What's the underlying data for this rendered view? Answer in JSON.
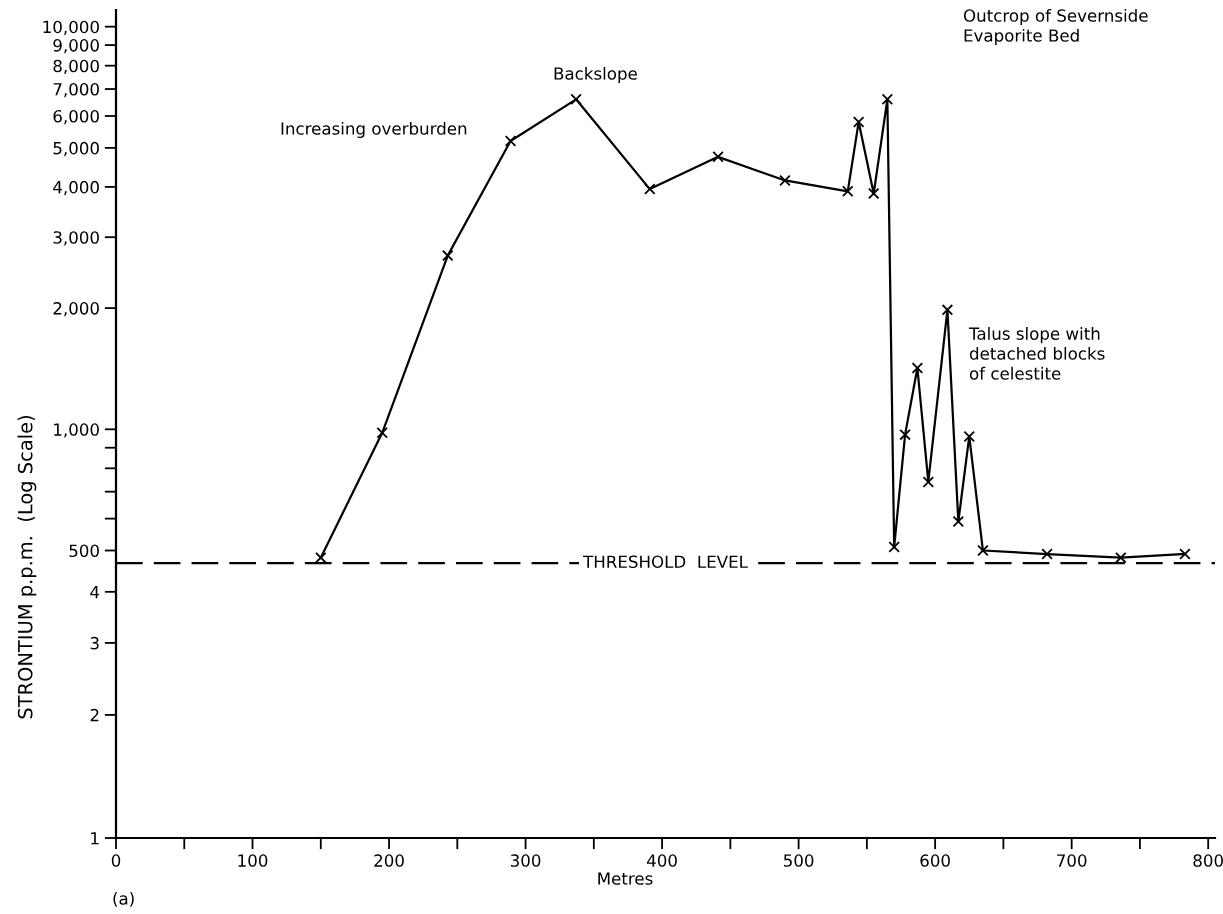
{
  "chart_data": [
    {
      "type": "line",
      "ylabel": "STRONTIUM p.p.m.  (Log Scale)",
      "log": true,
      "marker": "cross",
      "line_style": "solid",
      "grid": false,
      "legend": false,
      "tick_labels": "y",
      "xlim": [
        0,
        805
      ],
      "ylim": [
        455,
        11000
      ],
      "yticks": [
        {
          "value": 500,
          "label": "500"
        },
        {
          "value": 600,
          "label": null
        },
        {
          "value": 700,
          "label": null
        },
        {
          "value": 800,
          "label": null
        },
        {
          "value": 900,
          "label": null
        },
        {
          "value": 1000,
          "label": "1,000"
        },
        {
          "value": 2000,
          "label": "2,000"
        },
        {
          "value": 3000,
          "label": "3,000"
        },
        {
          "value": 4000,
          "label": "4,000"
        },
        {
          "value": 5000,
          "label": "5,000"
        },
        {
          "value": 6000,
          "label": "6,000"
        },
        {
          "value": 7000,
          "label": "7,000"
        },
        {
          "value": 8000,
          "label": "8,000"
        },
        {
          "value": 9000,
          "label": "9,000"
        },
        {
          "value": 10000,
          "label": "10,000"
        }
      ],
      "x": [
        150,
        195,
        243,
        289,
        337,
        391,
        441,
        490,
        536,
        544,
        555,
        565,
        570,
        578,
        587,
        595,
        609,
        617,
        625,
        635,
        682,
        736,
        783
      ],
      "series": [
        {
          "color": "#000000",
          "values": [
            480,
            980,
            2700,
            5200,
            6600,
            3950,
            4750,
            4150,
            3900,
            5800,
            3850,
            6600,
            510,
            970,
            1420,
            740,
            1980,
            590,
            960,
            500,
            490,
            480,
            490
          ]
        }
      ],
      "ref_lines": [
        {
          "axis": "y",
          "value": 465,
          "label": "THRESHOLD  LEVEL",
          "line_style": "dashed",
          "color": "#000000"
        }
      ],
      "annotations": [
        "Increasing overburden",
        "Backslope",
        "Outcrop of Severnside\nEvaporite Bed",
        "Talus slope with\ndetached blocks\nof celestite"
      ]
    },
    {
      "type": "line",
      "xlabel": "Metres",
      "log": true,
      "grid": false,
      "legend": false,
      "xlim": [
        0,
        805
      ],
      "ylim": [
        1,
        4.6
      ],
      "xticks": [
        0,
        {
          "value": 50,
          "label": null
        },
        100,
        {
          "value": 150,
          "label": null
        },
        200,
        {
          "value": 250,
          "label": null
        },
        300,
        {
          "value": 350,
          "label": null
        },
        400,
        {
          "value": 450,
          "label": null
        },
        500,
        {
          "value": 550,
          "label": null
        },
        600,
        {
          "value": 650,
          "label": null
        },
        700,
        {
          "value": 750,
          "label": null
        },
        800
      ],
      "yticks": [
        1,
        2,
        3,
        4
      ],
      "annotations": [
        "(a)"
      ]
    }
  ]
}
